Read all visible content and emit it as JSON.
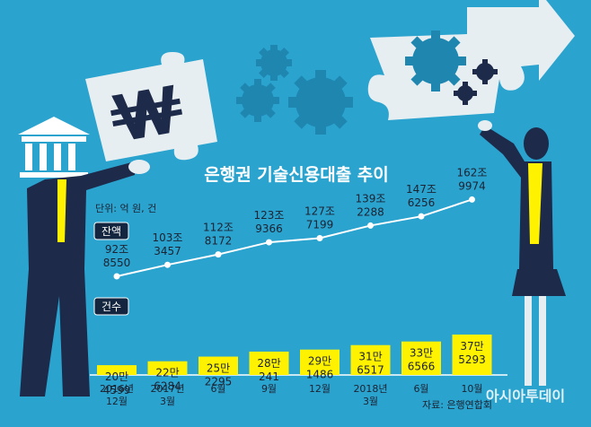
{
  "chart_data": {
    "type": "bar",
    "title": "은행권 기술신용대출 추이",
    "unit_note": "단위: 억 원, 건",
    "source": "자료: 은행연합회",
    "watermark": "아시아투데이",
    "categories": [
      [
        "2016년",
        "12월"
      ],
      [
        "2017년",
        "3월"
      ],
      [
        "6월"
      ],
      [
        "9월"
      ],
      [
        "12월"
      ],
      [
        "2018년",
        "3월"
      ],
      [
        "6월"
      ],
      [
        "10월"
      ]
    ],
    "series": [
      {
        "name": "잔액",
        "type": "line",
        "values": [
          928550,
          1033457,
          1128172,
          1239366,
          1277199,
          1392288,
          1476256,
          1629974
        ],
        "labels": [
          [
            "92조",
            "8550"
          ],
          [
            "103조",
            "3457"
          ],
          [
            "112조",
            "8172"
          ],
          [
            "123조",
            "9366"
          ],
          [
            "127조",
            "7199"
          ],
          [
            "139조",
            "2288"
          ],
          [
            "147조",
            "6256"
          ],
          [
            "162조",
            "9974"
          ]
        ]
      },
      {
        "name": "건수",
        "type": "bar",
        "values": [
          204599,
          226284,
          252295,
          280241,
          291486,
          316517,
          336566,
          375293
        ],
        "labels": [
          [
            "20만",
            "4599"
          ],
          [
            "22만",
            "6284"
          ],
          [
            "25만",
            "2295"
          ],
          [
            "28만",
            "241"
          ],
          [
            "29만",
            "1486"
          ],
          [
            "31만",
            "6517"
          ],
          [
            "33만",
            "6566"
          ],
          [
            "37만",
            "5293"
          ]
        ]
      }
    ],
    "colors": {
      "background": "#2aa3cf",
      "bar": "#fff200",
      "line": "#ffffff",
      "marker": "#ffffff",
      "legend_box": "#14263f",
      "illustration_dark": "#1e2a4a",
      "puzzle": "#e6eef1"
    }
  }
}
